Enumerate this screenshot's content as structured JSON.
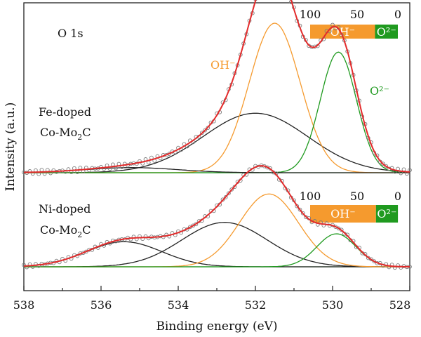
{
  "chart_data": {
    "type": "line",
    "xlabel": "Binding energy (eV)",
    "ylabel": "Intensity (a.u.)",
    "xlim": [
      538,
      528
    ],
    "x_reversed": true,
    "xticks": [
      538,
      536,
      534,
      532,
      530,
      528
    ],
    "yticks_shown": false,
    "grid": false,
    "core_level": "O 1s",
    "colors": {
      "envelope": "#e32b2b",
      "raw": "#7a7a7a",
      "oh": "#f59a2e",
      "o2": "#1f9a1f",
      "broad": "#222222",
      "baseline": "#2a7a2a"
    },
    "panels": [
      {
        "sample_line1": "Fe-doped",
        "sample_line2_prefix": "Co-Mo",
        "sample_line2_sub": "2",
        "sample_line2_suffix": "C",
        "baseline_intensity": 0.0,
        "components": [
          {
            "id": "broad",
            "center": 532.0,
            "fwhm": 3.2,
            "height": 0.35
          },
          {
            "id": "oh",
            "label": "OH⁻",
            "center": 531.5,
            "fwhm": 1.55,
            "height": 0.88
          },
          {
            "id": "o2",
            "label": "O²⁻",
            "center": 529.85,
            "fwhm": 1.1,
            "height": 0.71
          },
          {
            "id": "tail",
            "center": 535.2,
            "fwhm": 2.8,
            "height": 0.03
          }
        ],
        "ratio_bar": {
          "labels_scale": [
            "100",
            "50",
            "0"
          ],
          "oh_label": "OH⁻",
          "o2_label": "O²⁻",
          "oh_fraction": 0.74
        }
      },
      {
        "sample_line1": "Ni-doped",
        "sample_line2_prefix": "Co-Mo",
        "sample_line2_sub": "2",
        "sample_line2_suffix": "C",
        "baseline_intensity": 0.0,
        "components": [
          {
            "id": "broad1",
            "center": 535.4,
            "fwhm": 2.3,
            "height": 0.22
          },
          {
            "id": "broad2",
            "center": 532.8,
            "fwhm": 2.6,
            "height": 0.39
          },
          {
            "id": "oh",
            "label": "OH⁻",
            "center": 531.65,
            "fwhm": 1.8,
            "height": 0.64
          },
          {
            "id": "o2",
            "label": "O²⁻",
            "center": 529.9,
            "fwhm": 1.2,
            "height": 0.29
          }
        ],
        "ratio_bar": {
          "labels_scale": [
            "100",
            "50",
            "0"
          ],
          "oh_label": "OH⁻",
          "o2_label": "O²⁻",
          "oh_fraction": 0.75
        }
      }
    ]
  }
}
